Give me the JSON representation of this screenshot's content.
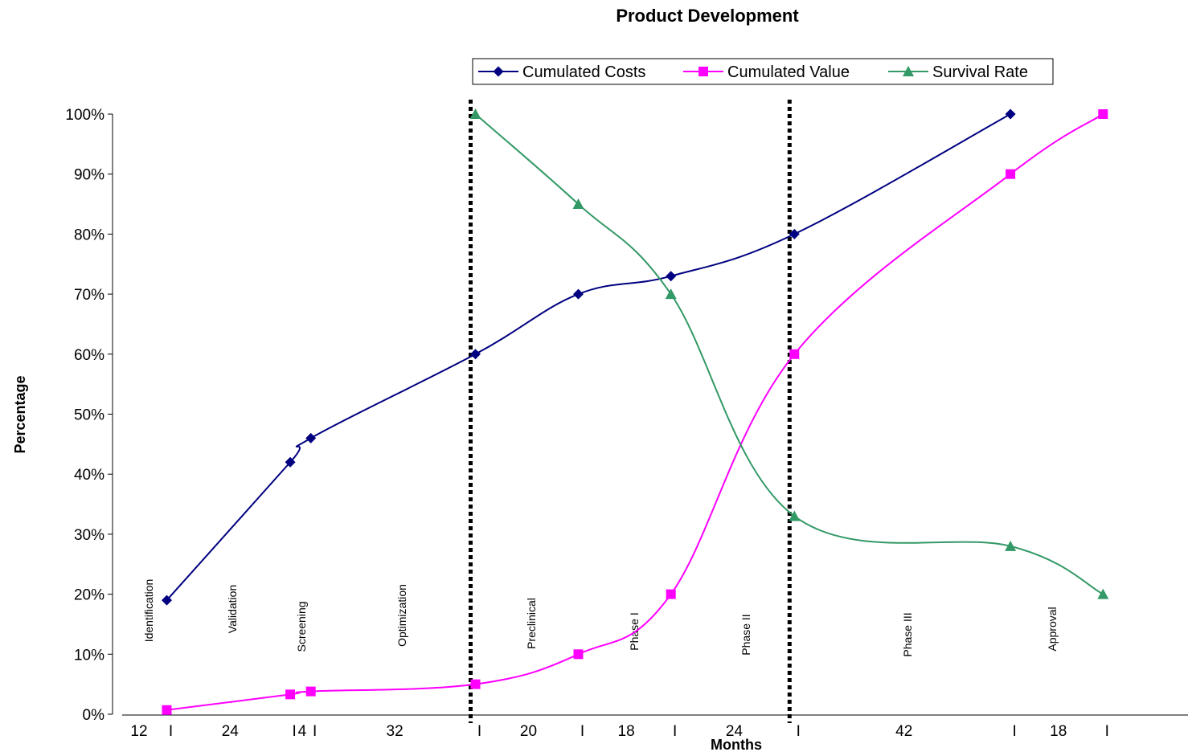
{
  "chart_data": {
    "type": "line",
    "title": "Product Development",
    "xlabel": "Months",
    "ylabel": "Percentage",
    "ylim": [
      0,
      1
    ],
    "yticks": [
      "0%",
      "10%",
      "20%",
      "30%",
      "40%",
      "50%",
      "60%",
      "70%",
      "80%",
      "90%",
      "100%"
    ],
    "x_segments": [
      "12",
      "24",
      "4",
      "32",
      "20",
      "18",
      "24",
      "42",
      "18"
    ],
    "x_bar_glyph": "I",
    "phases": [
      "Identification",
      "Validation",
      "Screening",
      "Optimization",
      "Preclinical",
      "Phase I",
      "Phase II",
      "Phase III",
      "Approval"
    ],
    "legend_position": "top",
    "gridlines": false,
    "divider_months": [
      72,
      134
    ],
    "series": [
      {
        "name": "Cumulated Costs",
        "color": "#000080",
        "marker": "diamond",
        "x": [
          12,
          36,
          40,
          72,
          92,
          110,
          134,
          176
        ],
        "y": [
          0.19,
          0.42,
          0.46,
          0.6,
          0.7,
          0.73,
          0.8,
          1.0
        ]
      },
      {
        "name": "Cumulated Value",
        "color": "#FF00FF",
        "marker": "square",
        "x": [
          12,
          36,
          40,
          72,
          92,
          110,
          134,
          176,
          194
        ],
        "y": [
          0.007,
          0.033,
          0.038,
          0.05,
          0.1,
          0.2,
          0.6,
          0.9,
          1.0
        ]
      },
      {
        "name": "Survival Rate",
        "color": "#339966",
        "marker": "triangle",
        "x": [
          72,
          92,
          110,
          134,
          176,
          194
        ],
        "y": [
          1.0,
          0.85,
          0.7,
          0.33,
          0.28,
          0.2
        ]
      }
    ]
  }
}
